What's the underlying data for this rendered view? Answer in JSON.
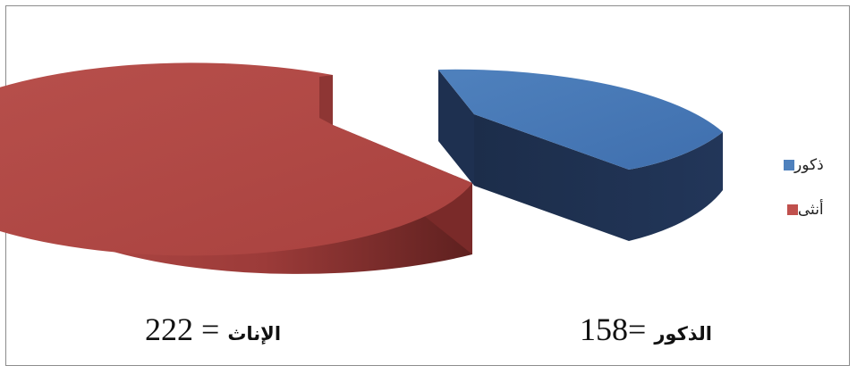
{
  "chart_data": {
    "type": "pie",
    "title": "",
    "slices": [
      {
        "name": "ذكور",
        "value": 158,
        "color": "#4f81bd"
      },
      {
        "name": "أنثى",
        "value": 222,
        "color": "#c0504d"
      }
    ],
    "legend": {
      "placement": "right",
      "items": [
        "ذكور",
        "أنثى"
      ]
    },
    "labels": {
      "female": {
        "text": "الإناث",
        "sep": " =",
        "value": "222"
      },
      "male": {
        "text": "الذكور",
        "sep": "= ",
        "value": "158"
      }
    }
  }
}
